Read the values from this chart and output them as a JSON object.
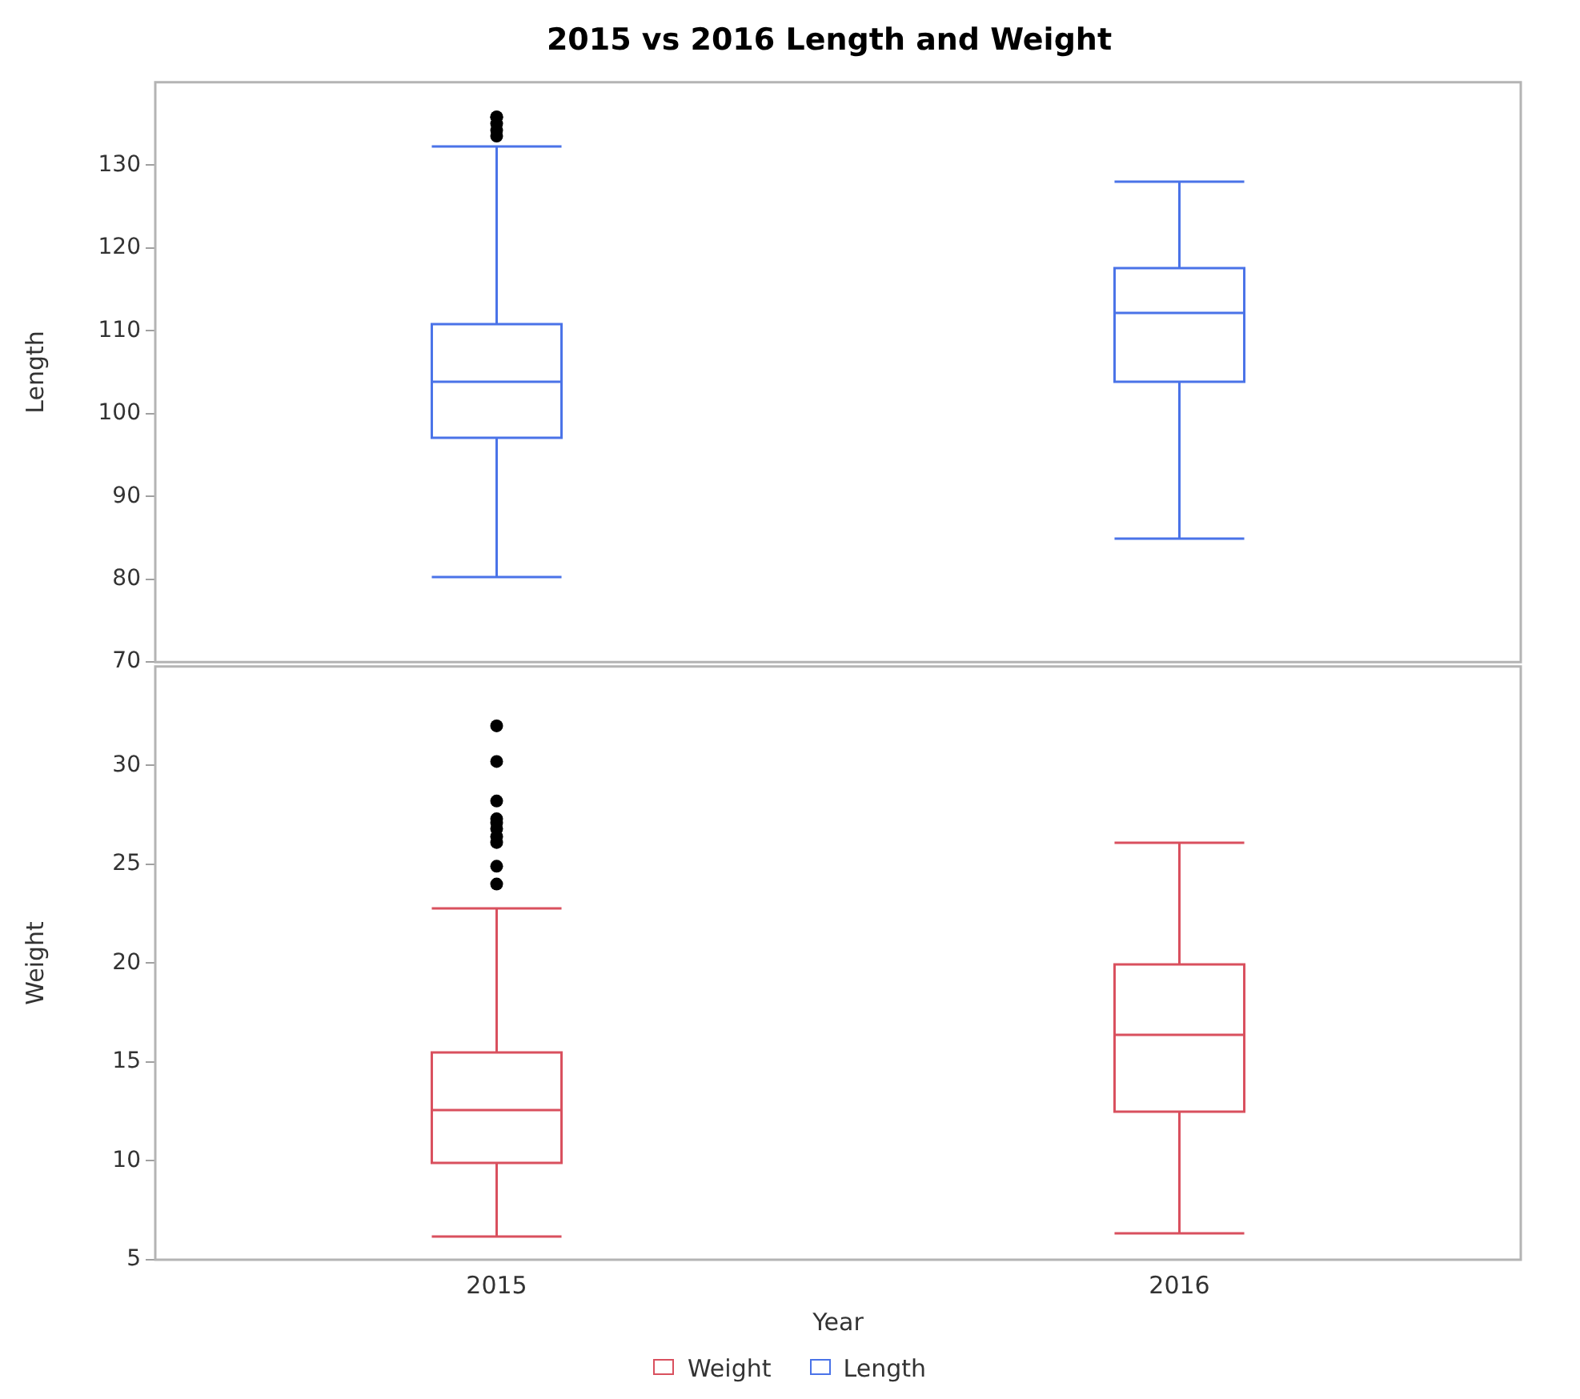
{
  "chart_data": [
    {
      "type": "box",
      "title": "2015 vs 2016 Length and Weight",
      "ylabel": "Length",
      "categories": [
        "2015",
        "2016"
      ],
      "ylim": [
        70,
        140
      ],
      "yticks": [
        70,
        80,
        90,
        100,
        110,
        120,
        130
      ],
      "tick_labels": "y",
      "grid": false,
      "legend": "bottom",
      "series": [
        {
          "name": "Length",
          "color": "#4a73e8",
          "boxes": [
            {
              "low": 80.4,
              "q1": 97.1,
              "median": 104,
              "q3": 110.8,
              "high": 132.3,
              "outliers": [
                135.8,
                135,
                134.2,
                133.5,
                135.8
              ]
            },
            {
              "low": 85,
              "q1": 104,
              "median": 112.3,
              "q3": 117.7,
              "high": 128.1
            }
          ]
        }
      ]
    },
    {
      "type": "box",
      "xlabel": "Year",
      "ylabel": "Weight",
      "categories": [
        "2015",
        "2016"
      ],
      "ylim": [
        5,
        35
      ],
      "yticks": [
        5,
        10,
        15,
        20,
        25,
        30
      ],
      "grid": false,
      "legend": "bottom",
      "series": [
        {
          "name": "Weight",
          "color": "#d9505e",
          "boxes": [
            {
              "low": 6.2,
              "q1": 9.9,
              "median": 12.6,
              "q3": 15.5,
              "high": 22.8,
              "outliers": [
                32,
                30.2,
                28.2,
                27.3,
                27.1,
                26.8,
                26.4,
                26.1,
                24.9,
                24
              ]
            },
            {
              "low": 6.4,
              "q1": 12.5,
              "median": 16.4,
              "q3": 20,
              "high": 26.1
            }
          ]
        }
      ]
    }
  ]
}
